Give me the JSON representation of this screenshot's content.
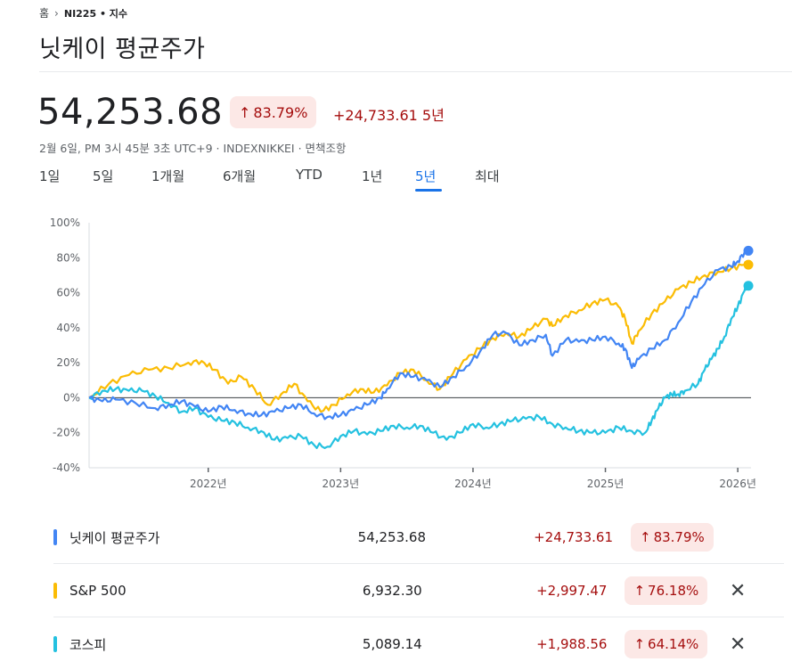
{
  "breadcrumb": {
    "home": "홈",
    "separator": "›",
    "ticker": "NI225 • 지수"
  },
  "title": "닛케이 평균주가",
  "quote": {
    "price": "54,253.68",
    "arrow": "↑",
    "pct": "83.79%",
    "change": "+24,733.61 5년",
    "meta": "2월 6일, PM 3시 45분 3초 UTC+9 · INDEXNIKKEI · 면책조항"
  },
  "tabs": [
    {
      "label": "1일",
      "active": false
    },
    {
      "label": "5일",
      "active": false
    },
    {
      "label": "1개월",
      "active": false
    },
    {
      "label": "6개월",
      "active": false
    },
    {
      "label": "YTD",
      "active": false
    },
    {
      "label": "1년",
      "active": false
    },
    {
      "label": "5년",
      "active": true
    },
    {
      "label": "최대",
      "active": false
    }
  ],
  "colors": {
    "nikkei": "#4285f4",
    "sp500": "#fbbc04",
    "kospi": "#24c1e0",
    "down": "#a50e0e"
  },
  "chart_data": {
    "type": "line",
    "x_unit": "year",
    "xlim": [
      2021.1,
      2026.1
    ],
    "ylim": [
      -40,
      100
    ],
    "yticks": [
      -40,
      -20,
      0,
      20,
      40,
      60,
      80,
      100
    ],
    "ytick_labels": [
      "-40%",
      "-20%",
      "0%",
      "20%",
      "40%",
      "60%",
      "80%",
      "100%"
    ],
    "xticks": [
      2022,
      2023,
      2024,
      2025,
      2026
    ],
    "xtick_labels": [
      "2022년",
      "2023년",
      "2024년",
      "2025년",
      "2026년"
    ],
    "zero_line": 0,
    "grid": false,
    "series": [
      {
        "name": "닛케이 평균주가",
        "color": "#4285f4",
        "points": [
          [
            2021.1,
            0
          ],
          [
            2021.2,
            -2
          ],
          [
            2021.3,
            -1
          ],
          [
            2021.45,
            -3
          ],
          [
            2021.6,
            -6
          ],
          [
            2021.7,
            -4
          ],
          [
            2021.8,
            -2
          ],
          [
            2021.9,
            -5
          ],
          [
            2022.0,
            -8
          ],
          [
            2022.1,
            -5
          ],
          [
            2022.2,
            -7
          ],
          [
            2022.3,
            -9
          ],
          [
            2022.4,
            -10
          ],
          [
            2022.5,
            -8
          ],
          [
            2022.6,
            -6
          ],
          [
            2022.7,
            -4
          ],
          [
            2022.8,
            -9
          ],
          [
            2022.9,
            -11
          ],
          [
            2023.0,
            -10
          ],
          [
            2023.1,
            -7
          ],
          [
            2023.2,
            -4
          ],
          [
            2023.3,
            0
          ],
          [
            2023.35,
            5
          ],
          [
            2023.45,
            14
          ],
          [
            2023.55,
            12
          ],
          [
            2023.65,
            10
          ],
          [
            2023.75,
            6
          ],
          [
            2023.85,
            12
          ],
          [
            2023.95,
            18
          ],
          [
            2024.05,
            26
          ],
          [
            2024.15,
            36
          ],
          [
            2024.25,
            37
          ],
          [
            2024.35,
            30
          ],
          [
            2024.45,
            33
          ],
          [
            2024.55,
            36
          ],
          [
            2024.6,
            24
          ],
          [
            2024.7,
            33
          ],
          [
            2024.8,
            32
          ],
          [
            2024.9,
            33
          ],
          [
            2025.0,
            35
          ],
          [
            2025.1,
            31
          ],
          [
            2025.15,
            28
          ],
          [
            2025.2,
            17
          ],
          [
            2025.25,
            22
          ],
          [
            2025.35,
            28
          ],
          [
            2025.45,
            33
          ],
          [
            2025.55,
            43
          ],
          [
            2025.65,
            55
          ],
          [
            2025.75,
            65
          ],
          [
            2025.85,
            73
          ],
          [
            2025.95,
            75
          ],
          [
            2026.0,
            78
          ],
          [
            2026.05,
            83
          ],
          [
            2026.08,
            84
          ]
        ]
      },
      {
        "name": "S&P 500",
        "color": "#fbbc04",
        "points": [
          [
            2021.1,
            0
          ],
          [
            2021.25,
            8
          ],
          [
            2021.4,
            13
          ],
          [
            2021.55,
            16
          ],
          [
            2021.7,
            17
          ],
          [
            2021.85,
            20
          ],
          [
            2021.95,
            21
          ],
          [
            2022.05,
            16
          ],
          [
            2022.15,
            8
          ],
          [
            2022.25,
            12
          ],
          [
            2022.35,
            5
          ],
          [
            2022.45,
            -4
          ],
          [
            2022.55,
            2
          ],
          [
            2022.65,
            8
          ],
          [
            2022.75,
            -2
          ],
          [
            2022.85,
            -8
          ],
          [
            2022.95,
            -4
          ],
          [
            2023.05,
            2
          ],
          [
            2023.15,
            5
          ],
          [
            2023.25,
            3
          ],
          [
            2023.35,
            7
          ],
          [
            2023.45,
            14
          ],
          [
            2023.55,
            16
          ],
          [
            2023.65,
            10
          ],
          [
            2023.75,
            5
          ],
          [
            2023.85,
            14
          ],
          [
            2023.95,
            22
          ],
          [
            2024.05,
            28
          ],
          [
            2024.15,
            34
          ],
          [
            2024.25,
            37
          ],
          [
            2024.35,
            35
          ],
          [
            2024.45,
            40
          ],
          [
            2024.55,
            45
          ],
          [
            2024.6,
            41
          ],
          [
            2024.7,
            47
          ],
          [
            2024.8,
            50
          ],
          [
            2024.9,
            54
          ],
          [
            2025.0,
            56
          ],
          [
            2025.1,
            52
          ],
          [
            2025.15,
            45
          ],
          [
            2025.2,
            31
          ],
          [
            2025.25,
            38
          ],
          [
            2025.35,
            48
          ],
          [
            2025.45,
            55
          ],
          [
            2025.55,
            62
          ],
          [
            2025.65,
            66
          ],
          [
            2025.75,
            70
          ],
          [
            2025.85,
            72
          ],
          [
            2025.95,
            74
          ],
          [
            2026.05,
            76
          ],
          [
            2026.08,
            76
          ]
        ]
      },
      {
        "name": "코스피",
        "color": "#24c1e0",
        "points": [
          [
            2021.1,
            0
          ],
          [
            2021.2,
            4
          ],
          [
            2021.3,
            5
          ],
          [
            2021.4,
            4
          ],
          [
            2021.5,
            4
          ],
          [
            2021.6,
            1
          ],
          [
            2021.7,
            -3
          ],
          [
            2021.8,
            -8
          ],
          [
            2021.9,
            -6
          ],
          [
            2022.0,
            -11
          ],
          [
            2022.1,
            -13
          ],
          [
            2022.2,
            -14
          ],
          [
            2022.3,
            -17
          ],
          [
            2022.4,
            -19
          ],
          [
            2022.5,
            -24
          ],
          [
            2022.6,
            -23
          ],
          [
            2022.7,
            -22
          ],
          [
            2022.8,
            -27
          ],
          [
            2022.9,
            -28
          ],
          [
            2023.0,
            -22
          ],
          [
            2023.1,
            -19
          ],
          [
            2023.2,
            -21
          ],
          [
            2023.3,
            -19
          ],
          [
            2023.4,
            -16
          ],
          [
            2023.5,
            -17
          ],
          [
            2023.6,
            -16
          ],
          [
            2023.7,
            -20
          ],
          [
            2023.8,
            -24
          ],
          [
            2023.9,
            -20
          ],
          [
            2024.0,
            -15
          ],
          [
            2024.1,
            -17
          ],
          [
            2024.2,
            -15
          ],
          [
            2024.3,
            -13
          ],
          [
            2024.4,
            -12
          ],
          [
            2024.5,
            -11
          ],
          [
            2024.6,
            -15
          ],
          [
            2024.7,
            -17
          ],
          [
            2024.8,
            -19
          ],
          [
            2024.9,
            -20
          ],
          [
            2025.0,
            -20
          ],
          [
            2025.1,
            -17
          ],
          [
            2025.2,
            -19
          ],
          [
            2025.3,
            -20
          ],
          [
            2025.35,
            -13
          ],
          [
            2025.4,
            -6
          ],
          [
            2025.45,
            0
          ],
          [
            2025.5,
            2
          ],
          [
            2025.55,
            2
          ],
          [
            2025.6,
            4
          ],
          [
            2025.7,
            8
          ],
          [
            2025.75,
            16
          ],
          [
            2025.8,
            22
          ],
          [
            2025.85,
            28
          ],
          [
            2025.9,
            35
          ],
          [
            2025.95,
            45
          ],
          [
            2026.0,
            52
          ],
          [
            2026.05,
            61
          ],
          [
            2026.08,
            64
          ]
        ]
      }
    ]
  },
  "rows": [
    {
      "name": "닛케이 평균주가",
      "value": "54,253.68",
      "change": "+24,733.61",
      "arrow": "↑",
      "pct": "83.79%",
      "color": "#4285f4",
      "removable": false
    },
    {
      "name": "S&P 500",
      "value": "6,932.30",
      "change": "+2,997.47",
      "arrow": "↑",
      "pct": "76.18%",
      "color": "#fbbc04",
      "removable": true
    },
    {
      "name": "코스피",
      "value": "5,089.14",
      "change": "+1,988.56",
      "arrow": "↑",
      "pct": "64.14%",
      "color": "#24c1e0",
      "removable": true
    }
  ],
  "close_glyph": "✕"
}
